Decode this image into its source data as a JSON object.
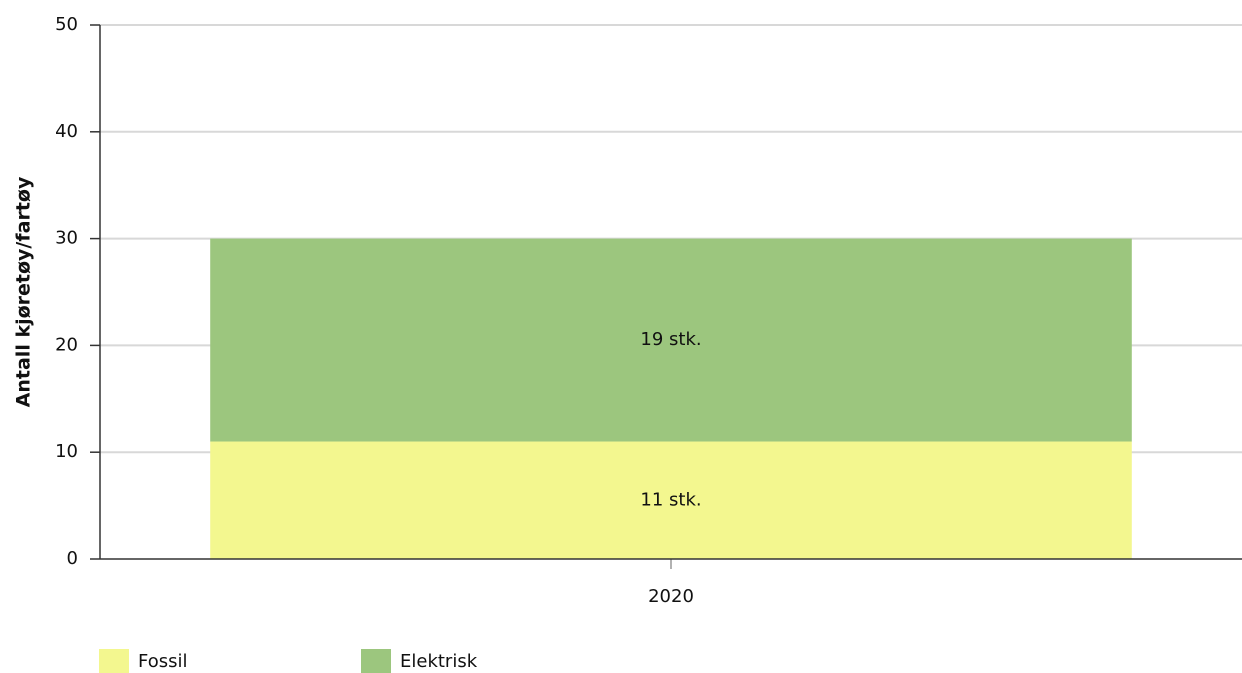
{
  "chart_data": {
    "type": "stacked_bar",
    "y_axis_label": "Antall kjøretøy/fartøy",
    "categories": [
      "2020"
    ],
    "series": [
      {
        "name": "Fossil",
        "color": "#f3f78f",
        "values": [
          11
        ],
        "value_labels": [
          "11 stk."
        ]
      },
      {
        "name": "Elektrisk",
        "color": "#9cc67e",
        "values": [
          19
        ],
        "value_labels": [
          "19 stk."
        ]
      }
    ],
    "ylim": [
      0,
      50
    ],
    "yticks": [
      0,
      10,
      20,
      30,
      40,
      50
    ],
    "grid": true,
    "legend": "bottom-left"
  }
}
